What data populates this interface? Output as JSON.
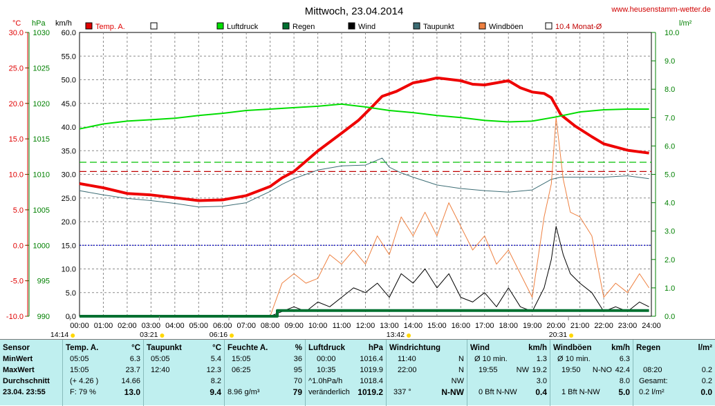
{
  "header": {
    "title": "Mittwoch, 23.04.2014",
    "url": "www.heusenstamm-wetter.de",
    "unit_celsius": "°C",
    "unit_hpa": "hPa",
    "unit_kmh": "km/h",
    "unit_rain": "l/m²"
  },
  "legend": {
    "items": [
      {
        "label": "Temp. A.",
        "color": "#e00000"
      },
      {
        "label": "",
        "color": "#ffffff"
      },
      {
        "label": "Luftdruck",
        "color": "#00e000"
      },
      {
        "label": "Regen",
        "color": "#007030"
      },
      {
        "label": "Wind",
        "color": "#000000"
      },
      {
        "label": "Taupunkt",
        "color": "#3c6c74"
      },
      {
        "label": "Windböen",
        "color": "#ee8040"
      },
      {
        "label": "10.4 Monat-Ø",
        "color": "#ffffff"
      }
    ]
  },
  "chart_data": {
    "type": "line",
    "title": "Mittwoch, 23.04.2014",
    "x_ticks": [
      "00:00",
      "01:00",
      "02:00",
      "03:00",
      "04:00",
      "05:00",
      "06:00",
      "07:00",
      "08:00",
      "09:00",
      "10:00",
      "11:00",
      "12:00",
      "13:00",
      "14:00",
      "15:00",
      "16:00",
      "17:00",
      "18:00",
      "19:00",
      "20:00",
      "21:00",
      "22:00",
      "23:00",
      "24:00"
    ],
    "xlim": [
      0,
      24
    ],
    "axes": {
      "temperature": {
        "unit": "°C",
        "range": [
          -10,
          30
        ],
        "ticks": [
          "30.0",
          "25.0",
          "20.0",
          "15.0",
          "10.0",
          "5.0",
          "0.0",
          "-5.0",
          "-10.0"
        ],
        "color": "#e00000"
      },
      "pressure": {
        "unit": "hPa",
        "range": [
          990,
          1030
        ],
        "ticks": [
          "1030",
          "1025",
          "1020",
          "1015",
          "1010",
          "1005",
          "1000",
          "995",
          "990"
        ],
        "color": "#008000"
      },
      "wind": {
        "unit": "km/h",
        "range": [
          0,
          60
        ],
        "ticks": [
          "60.0",
          "55.0",
          "50.0",
          "45.0",
          "40.0",
          "35.0",
          "30.0",
          "25.0",
          "20.0",
          "15.0",
          "10.0",
          "5.0",
          "0.0"
        ],
        "color": "#000000"
      },
      "rain": {
        "unit": "l/m²",
        "range": [
          0,
          10
        ],
        "ticks": [
          "10.0",
          "9.0",
          "8.0",
          "7.0",
          "6.0",
          "5.0",
          "4.0",
          "3.0",
          "2.0",
          "1.0",
          "0.0"
        ],
        "color": "#008000"
      }
    },
    "grid": true,
    "reference_lines": [
      {
        "name": "temp-monthly-average",
        "axis": "temperature",
        "value": 10.4,
        "color": "#c00000"
      },
      {
        "name": "pressure-monthly-average",
        "axis": "pressure",
        "value": 1011.7,
        "color": "#00c000"
      },
      {
        "name": "freezing-line",
        "axis": "temperature",
        "value": 0,
        "color": "#0000c0"
      }
    ],
    "series": [
      {
        "name": "Temp. A.",
        "axis": "temperature",
        "color": "#ee0000",
        "width": 4,
        "x": [
          0,
          1,
          2,
          3,
          4,
          5,
          6,
          7,
          8,
          8.5,
          9,
          10,
          11,
          11.7,
          12.3,
          12.7,
          13.3,
          14,
          14.5,
          15,
          15.5,
          16,
          16.5,
          17,
          17.5,
          18,
          18.5,
          19,
          19.5,
          19.8,
          20.2,
          20.8,
          21.5,
          22,
          23,
          23.9
        ],
        "y": [
          8.7,
          8.1,
          7.3,
          7.1,
          6.7,
          6.3,
          6.4,
          7.0,
          8.3,
          9.5,
          10.4,
          13.3,
          15.8,
          17.6,
          19.6,
          21.0,
          21.7,
          22.9,
          23.2,
          23.6,
          23.4,
          23.2,
          22.7,
          22.6,
          22.9,
          23.2,
          22.2,
          21.6,
          21.4,
          20.8,
          18.4,
          16.8,
          15.3,
          14.3,
          13.4,
          13.0
        ]
      },
      {
        "name": "Taupunkt",
        "axis": "temperature",
        "color": "#3c6c74",
        "width": 1,
        "x": [
          0,
          1,
          2,
          3,
          4,
          5,
          6,
          7,
          8,
          8.5,
          9,
          10,
          11,
          12,
          12.7,
          13,
          13.5,
          14,
          15,
          16,
          17,
          18,
          19,
          19.8,
          20.2,
          21,
          22,
          23,
          23.9
        ],
        "y": [
          7.7,
          7.1,
          6.6,
          6.3,
          5.9,
          5.4,
          5.5,
          6.0,
          7.6,
          8.6,
          9.4,
          10.6,
          11.2,
          11.3,
          12.3,
          11.0,
          10.2,
          9.6,
          8.5,
          8.0,
          7.7,
          7.5,
          7.8,
          9.3,
          9.6,
          9.6,
          9.6,
          9.8,
          9.4
        ]
      },
      {
        "name": "Luftdruck",
        "axis": "pressure",
        "color": "#00dd00",
        "width": 2,
        "x": [
          0,
          1,
          2,
          3,
          4,
          5,
          6,
          7,
          8,
          9,
          10,
          11,
          12,
          13,
          14,
          15,
          16,
          17,
          18,
          19,
          20,
          21,
          22,
          23,
          23.9
        ],
        "y": [
          1016.4,
          1017.1,
          1017.5,
          1017.7,
          1017.9,
          1018.3,
          1018.6,
          1019.0,
          1019.2,
          1019.4,
          1019.6,
          1019.9,
          1019.5,
          1019.0,
          1018.7,
          1018.3,
          1018.0,
          1017.6,
          1017.4,
          1017.5,
          1018.1,
          1018.8,
          1019.1,
          1019.2,
          1019.2
        ]
      },
      {
        "name": "Windböen",
        "axis": "wind",
        "color": "#ee8040",
        "width": 1,
        "x": [
          0,
          8,
          8.5,
          9,
          9.5,
          10,
          10.5,
          11,
          11.5,
          12,
          12.5,
          13,
          13.5,
          14,
          14.5,
          15,
          15.5,
          16,
          16.5,
          17,
          17.5,
          18,
          18.5,
          19,
          19.5,
          19.8,
          20.0,
          20.3,
          20.6,
          21,
          21.5,
          22,
          22.5,
          23,
          23.5,
          23.9
        ],
        "y": [
          0,
          0,
          7,
          9,
          7,
          8,
          13,
          11,
          14,
          11,
          17,
          13,
          21,
          17,
          22,
          17,
          24,
          19,
          14,
          17,
          11,
          14,
          9,
          4,
          21,
          28,
          42,
          29,
          22,
          21,
          17,
          4,
          7,
          5,
          9,
          6
        ]
      },
      {
        "name": "Wind",
        "axis": "wind",
        "color": "#000000",
        "width": 1,
        "x": [
          0,
          8,
          8.5,
          9,
          9.5,
          10,
          10.5,
          11,
          11.5,
          12,
          12.5,
          13,
          13.5,
          14,
          14.5,
          15,
          15.5,
          16,
          16.5,
          17,
          17.5,
          18,
          18.5,
          19,
          19.5,
          19.8,
          20.0,
          20.3,
          20.6,
          21,
          21.5,
          22,
          22.5,
          23,
          23.5,
          23.9
        ],
        "y": [
          0,
          0,
          1,
          2,
          1,
          3,
          2,
          4,
          6,
          5,
          7,
          4,
          9,
          7,
          10,
          6,
          9,
          4,
          3,
          5,
          2,
          6,
          2,
          1,
          6,
          12,
          19,
          13,
          9,
          7,
          5,
          1,
          2,
          1,
          3,
          2
        ]
      },
      {
        "name": "Regen",
        "axis": "rain",
        "color": "#007030",
        "width": 4,
        "x": [
          0,
          8.3,
          8.3,
          23.9
        ],
        "y": [
          0,
          0,
          0.2,
          0.2
        ]
      }
    ],
    "markers": [
      {
        "label": "14:14",
        "x": -0.4
      },
      {
        "label": "03:21",
        "x": 3.35
      },
      {
        "label": "06:16",
        "x": 6.27
      },
      {
        "label": "13:42",
        "x": 13.7
      },
      {
        "label": "20:31",
        "x": 20.52
      }
    ]
  },
  "table": {
    "sensor": {
      "head": "Sensor",
      "rows": [
        "MinWert",
        "MaxWert",
        "Durchschnitt"
      ],
      "date": "23.04. 23:55"
    },
    "temp": {
      "head": "Temp. A.",
      "unit": "°C",
      "min_time": "05:05",
      "min_val": "6.3",
      "max_time": "15:05",
      "max_val": "23.7",
      "avg_note": "(+ 4.26 )",
      "avg_val": "14.66",
      "foot_note": "F: 79 %",
      "foot_val": "13.0"
    },
    "taupunkt": {
      "head": "Taupunkt",
      "unit": "°C",
      "min_time": "05:05",
      "min_val": "5.4",
      "max_time": "12:40",
      "max_val": "12.3",
      "avg_val": "8.2",
      "foot_val": "9.4"
    },
    "feuchte": {
      "head": "Feuchte A.",
      "unit": "%",
      "min_time": "15:05",
      "min_val": "36",
      "max_time": "06:25",
      "max_val": "95",
      "avg_val": "70",
      "foot_note": "8.96 g/m³",
      "foot_val": "79"
    },
    "luftdruck": {
      "head": "Luftdruck",
      "unit": "hPa",
      "min_time": "00:00",
      "min_val": "1016.4",
      "max_time": "10:35",
      "max_val": "1019.9",
      "avg_note": "^1.0hPa/h",
      "avg_val": "1018.4",
      "foot_note": "veränderlich",
      "foot_val": "1019.2"
    },
    "windrichtung": {
      "head": "Windrichtung",
      "min_time": "11:40",
      "min_val": "N",
      "max_time": "22:00",
      "max_val": "N",
      "avg_val": "NW",
      "foot_note": "337 °",
      "foot_val": "N-NW"
    },
    "wind": {
      "head": "Wind",
      "unit": "km/h",
      "min_note": "Ø 10 min.",
      "min_val": "1.3",
      "max_time": "19:55",
      "max_dir": "NW",
      "max_val": "19.2",
      "avg_val": "3.0",
      "foot_note": "0 Bft N-NW",
      "foot_val": "0.4"
    },
    "windboeen": {
      "head": "Windböen",
      "unit": "km/h",
      "min_note": "Ø 10 min.",
      "min_val": "6.3",
      "max_time": "19:50",
      "max_dir": "N-NO",
      "max_val": "42.4",
      "avg_val": "8.0",
      "foot_note": "1 Bft N-NW",
      "foot_val": "5.0"
    },
    "regen": {
      "head": "Regen",
      "unit": "l/m²",
      "max_time": "08:20",
      "max_val": "0.2",
      "avg_note": "Gesamt:",
      "avg_val": "0.2",
      "foot_note": "0.2 l/m²",
      "foot_val": "0.0"
    }
  }
}
